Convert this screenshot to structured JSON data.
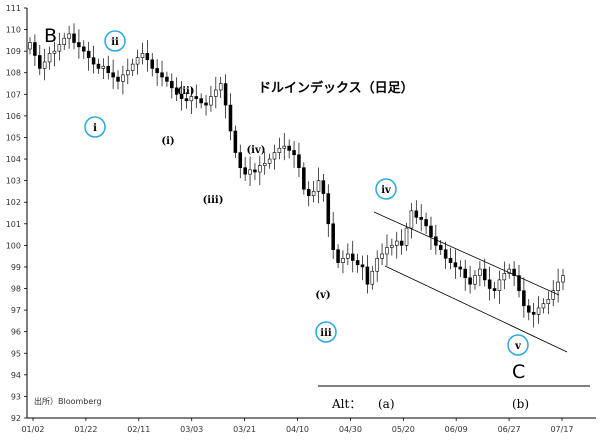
{
  "chart_data": {
    "type": "candlestick",
    "title": "ドルインデックス（日足）",
    "source_note": "出所）Bloomberg",
    "ylim": [
      92,
      111
    ],
    "y_ticks": [
      92,
      93,
      94,
      95,
      96,
      97,
      98,
      99,
      100,
      101,
      102,
      103,
      104,
      105,
      106,
      107,
      108,
      109,
      110,
      111
    ],
    "x_tick_labels": [
      "01/02",
      "01/22",
      "02/11",
      "03/03",
      "03/21",
      "04/10",
      "04/30",
      "05/20",
      "06/09",
      "06/27",
      "07/17"
    ],
    "grid": false,
    "candles_close": [
      109.4,
      108.8,
      108.2,
      108.5,
      108.9,
      109.0,
      109.3,
      109.6,
      109.8,
      109.4,
      109.2,
      109.0,
      108.7,
      108.4,
      108.2,
      108.3,
      108.0,
      107.8,
      107.6,
      107.9,
      108.1,
      108.4,
      108.7,
      108.9,
      108.6,
      108.2,
      108.0,
      107.8,
      107.6,
      107.3,
      107.0,
      106.8,
      106.7,
      106.9,
      106.8,
      106.6,
      106.5,
      106.9,
      107.2,
      107.5,
      106.5,
      105.3,
      104.3,
      103.6,
      103.3,
      103.5,
      103.4,
      103.7,
      103.8,
      104.0,
      104.3,
      104.5,
      104.6,
      104.4,
      104.2,
      103.6,
      102.6,
      102.3,
      102.5,
      103.0,
      102.4,
      101.0,
      99.8,
      99.2,
      99.4,
      99.6,
      99.3,
      99.1,
      99.0,
      98.2,
      98.8,
      99.4,
      99.6,
      99.9,
      100.0,
      100.2,
      100.0,
      100.8,
      101.6,
      101.3,
      101.2,
      100.9,
      100.4,
      100.0,
      99.8,
      99.4,
      99.2,
      99.0,
      98.9,
      98.5,
      98.2,
      98.6,
      98.9,
      98.4,
      98.0,
      97.9,
      98.4,
      98.7,
      98.9,
      98.6,
      97.9,
      97.2,
      96.9,
      96.8,
      97.1,
      97.3,
      97.5,
      97.9,
      98.3,
      98.6
    ]
  },
  "waves": {
    "B": "B",
    "C": "C",
    "i": "i",
    "ii": "ii",
    "iii": "iii",
    "iv": "iv",
    "v": "v",
    "p_i": "(i)",
    "p_ii": "(ii)",
    "p_iii": "(iii)",
    "p_iv": "(iv)",
    "p_v": "(v)"
  },
  "alt": {
    "label": "Alt：",
    "a": "(a)",
    "b": "(b)"
  },
  "colors": {
    "up_fill": "#ffffff",
    "down_fill": "#000000",
    "candle_border": "#000000",
    "circle": "#29a9e1",
    "axis": "#000000"
  }
}
